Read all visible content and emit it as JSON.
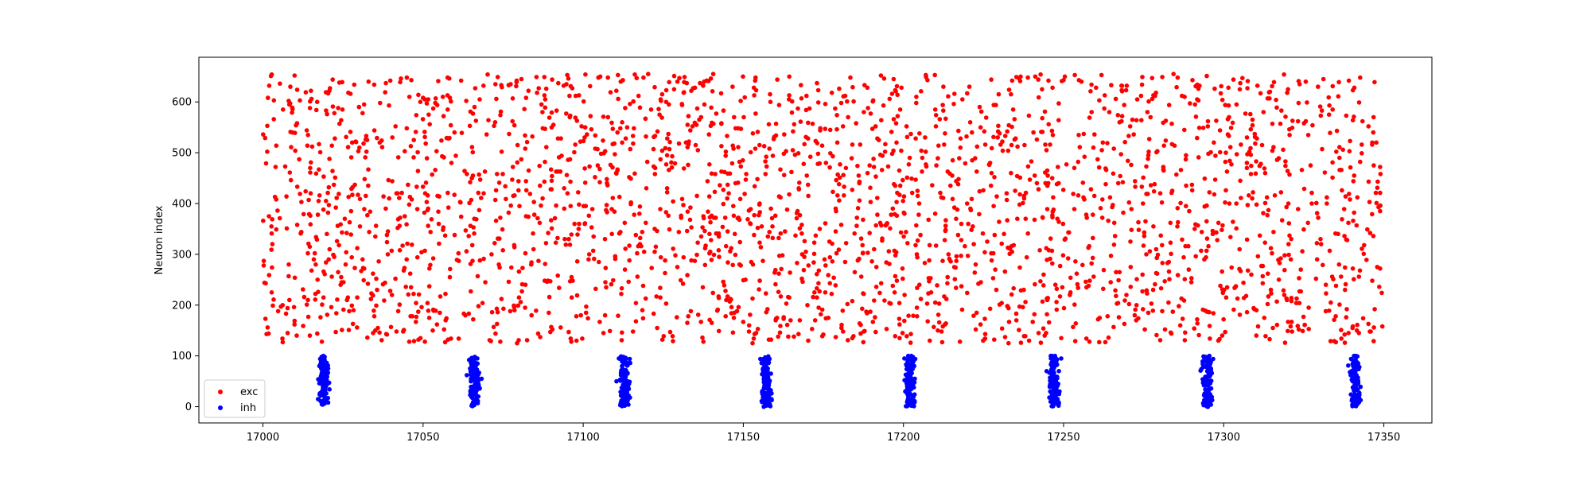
{
  "chart_data": {
    "type": "scatter",
    "title": "",
    "xlabel": "",
    "ylabel": "Neuron index",
    "xlim": [
      16980,
      17365
    ],
    "ylim": [
      -32,
      688
    ],
    "xticks": [
      17000,
      17050,
      17100,
      17150,
      17200,
      17250,
      17300,
      17350
    ],
    "yticks": [
      0,
      100,
      200,
      300,
      400,
      500,
      600
    ],
    "grid": false,
    "legend_position": "lower-left",
    "series": [
      {
        "name": "exc",
        "color": "#ff0000",
        "x_range": [
          17000,
          17350
        ],
        "y_range": [
          125,
          655
        ],
        "approx_point_count": 2600,
        "pattern": "dense random excitatory spikes across entire time window"
      },
      {
        "name": "inh",
        "color": "#0000ff",
        "x_range": [
          17012,
          17348
        ],
        "y_range": [
          0,
          100
        ],
        "burst_centers": [
          17019,
          17066,
          17113,
          17157,
          17202,
          17247,
          17295,
          17341
        ],
        "burst_width": 6,
        "points_per_burst": 120,
        "pattern": "periodic inhibitory bursts"
      }
    ]
  }
}
